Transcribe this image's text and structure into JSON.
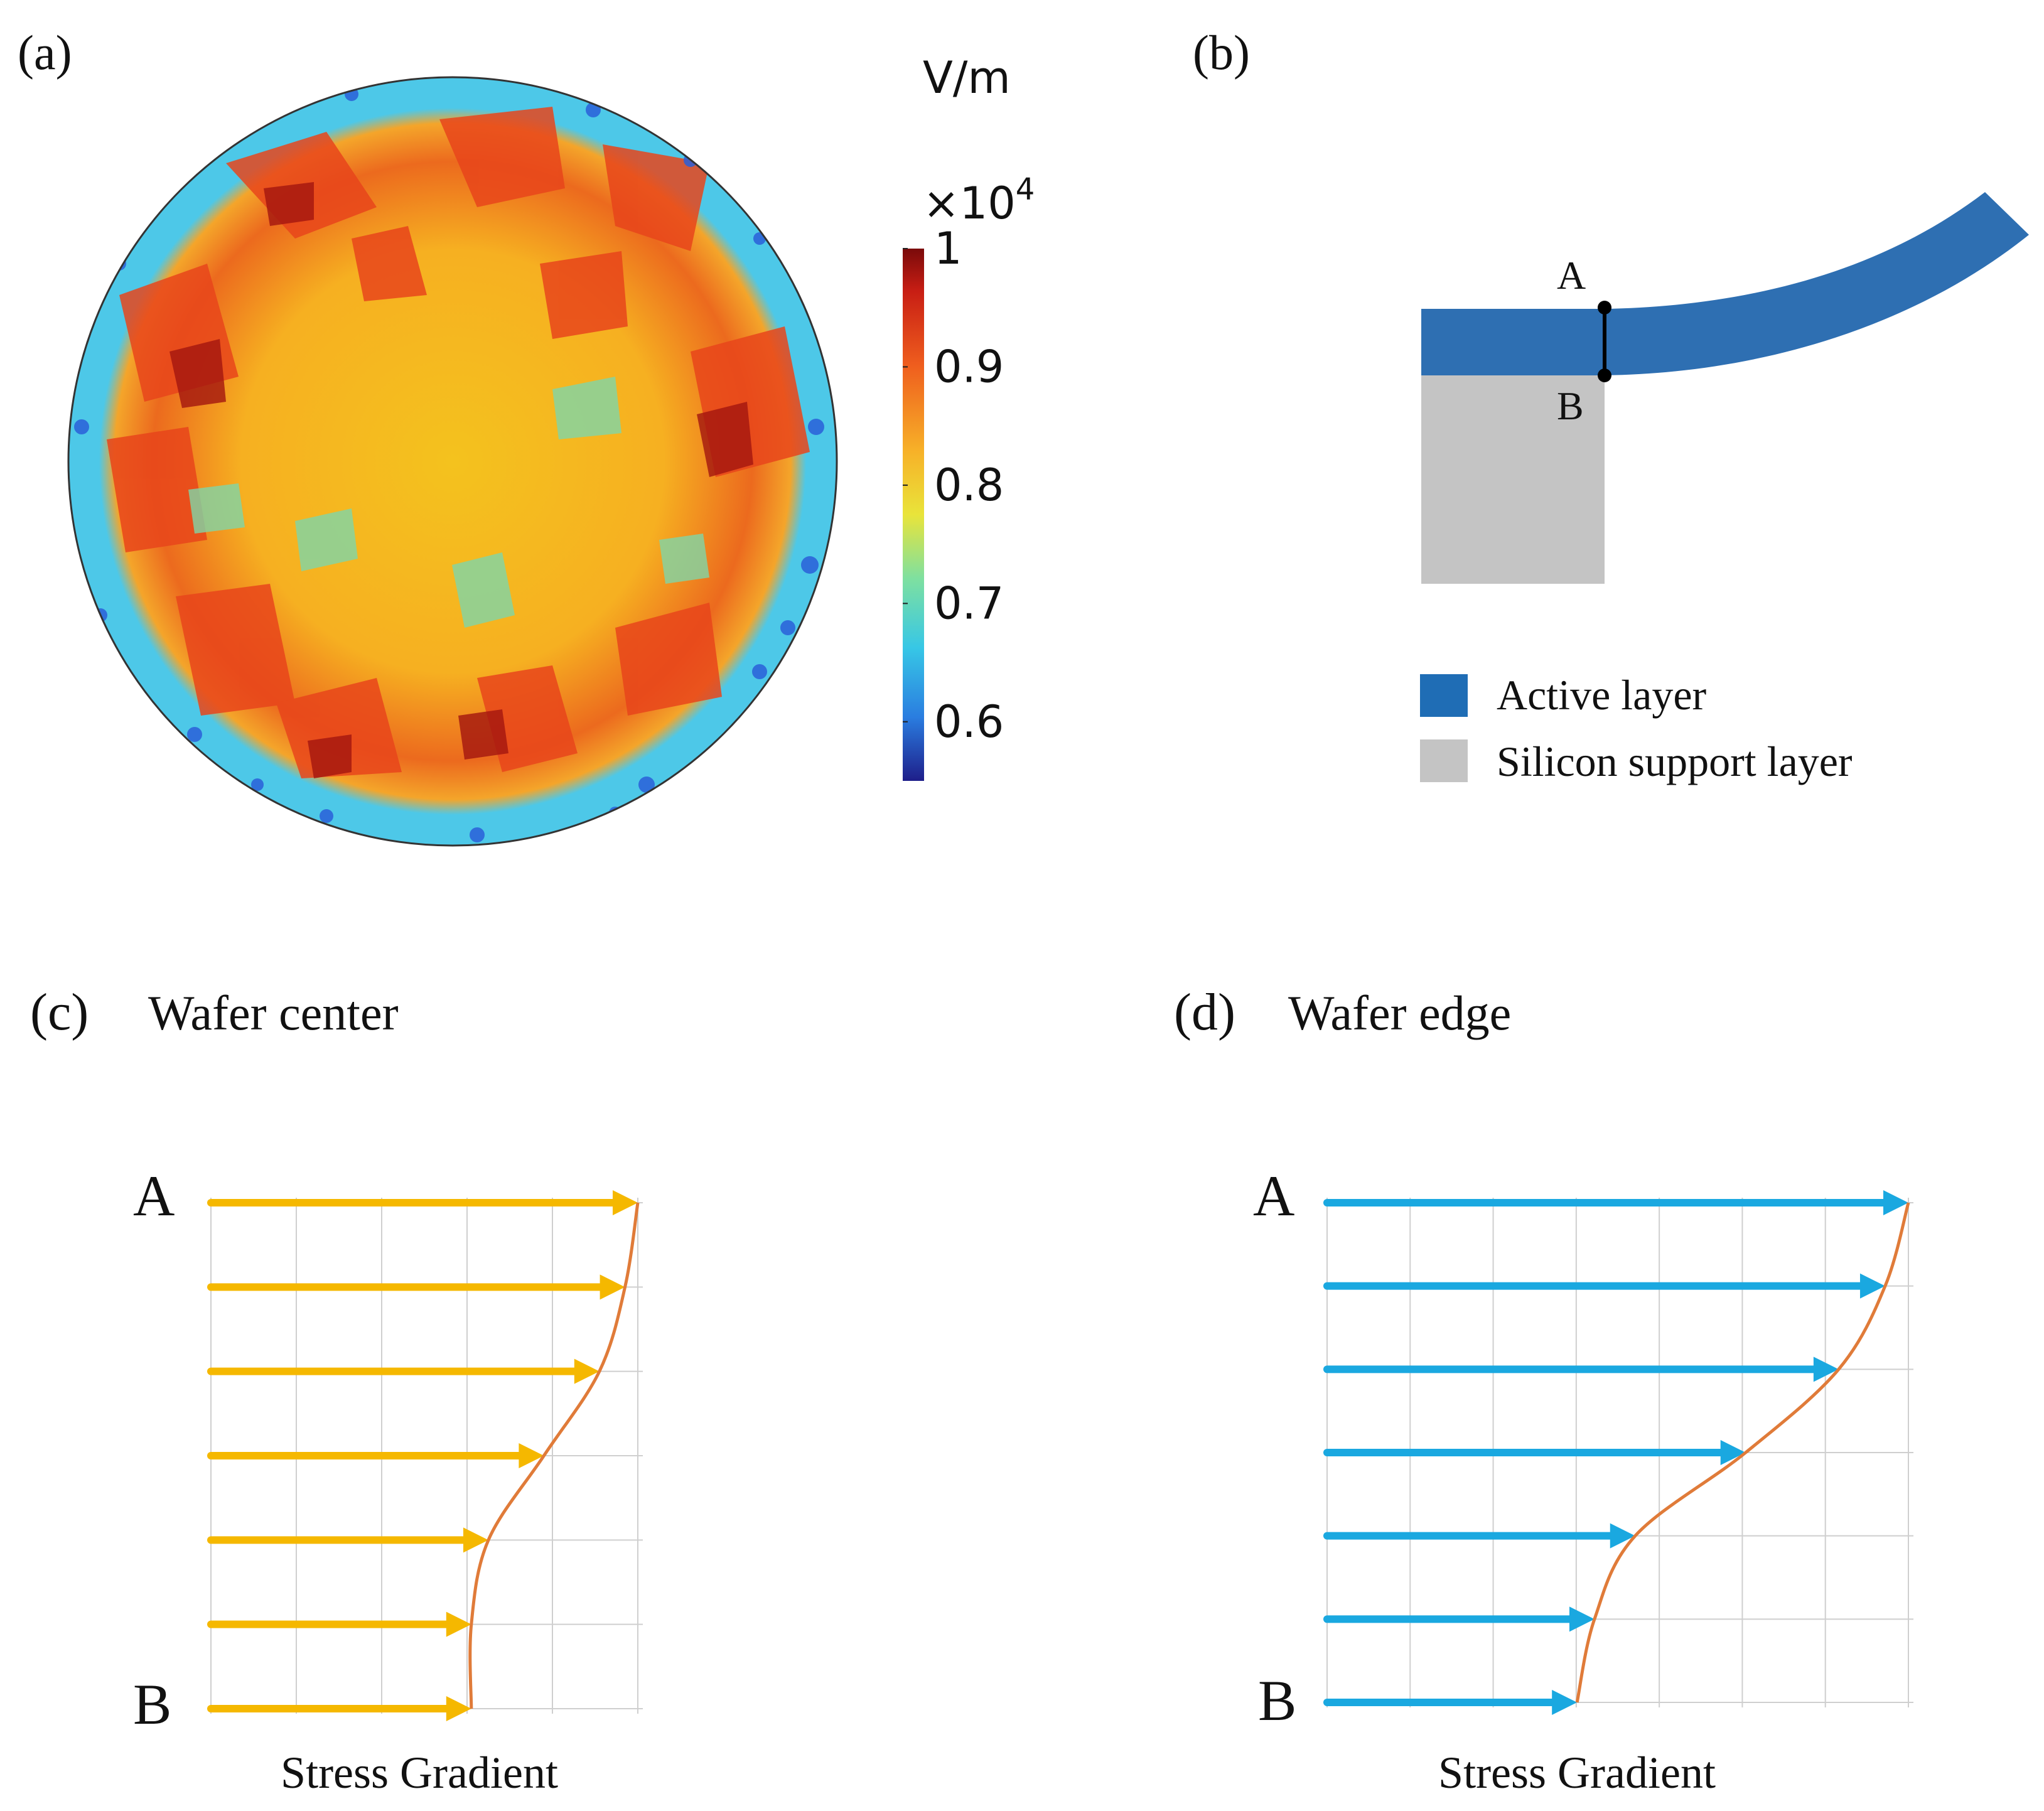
{
  "panel_a": {
    "label": "(a)",
    "colorbar": {
      "unit": "V/m",
      "multiplier_base": "×10",
      "multiplier_exp": "4",
      "ticks": [
        "1",
        "0.9",
        "0.8",
        "0.7",
        "0.6"
      ],
      "min": 0.55,
      "max": 1.0,
      "colormap": [
        "#1e1e8a",
        "#2a7de0",
        "#37c7e6",
        "#7ee0a0",
        "#e9e43a",
        "#f7b128",
        "#ef5e1e",
        "#c81e14",
        "#7a0a0a"
      ]
    },
    "wafer": {
      "ring_color": "#4dc8e8",
      "center_color": "#f4c21e",
      "hot_color": "#e8451b",
      "deep_hot_color": "#a3150f",
      "cool_color": "#7fd6a8",
      "edge_dark_color": "#2a5fd8"
    }
  },
  "panel_b": {
    "label": "(b)",
    "point_a": "A",
    "point_b": "B",
    "active_color": "#2e6fb2",
    "support_color": "#c4c4c4",
    "legend": [
      {
        "label": "Active layer",
        "color": "#1f6db5"
      },
      {
        "label": "Silicon support layer",
        "color": "#c4c4c4"
      }
    ]
  },
  "panel_c": {
    "label": "(c)",
    "title": "Wafer center",
    "top_label": "A",
    "bottom_label": "B",
    "xlabel": "Stress Gradient",
    "arrow_color": "#f5b800",
    "curve_color": "#e07b39",
    "grid_cols": 5,
    "grid_rows": 6,
    "arrow_lengths": [
      1.0,
      0.97,
      0.91,
      0.78,
      0.65,
      0.61,
      0.61
    ]
  },
  "panel_d": {
    "label": "(d)",
    "title": "Wafer edge",
    "top_label": "A",
    "bottom_label": "B",
    "xlabel": "Stress Gradient",
    "arrow_color": "#1aa8e0",
    "curve_color": "#e07b39",
    "grid_cols": 7,
    "grid_rows": 6,
    "arrow_lengths": [
      1.0,
      0.96,
      0.88,
      0.72,
      0.53,
      0.46,
      0.43
    ]
  }
}
